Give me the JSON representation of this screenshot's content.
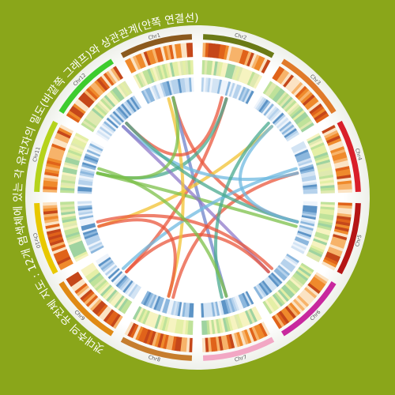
{
  "caption": "갯대추의 유전체 지도 : 12개 염색체에 있는 각 유전자의 밀도(바깥쪽 그래프)와 상관관계(안쪽 연결선)를 확인할 수 있다",
  "colors": {
    "background": "#8aa61a",
    "disc": "#ffffff",
    "caption": "#ffffff"
  },
  "chromosomes": [
    {
      "label": "Chr1",
      "color": "#8b5a1e"
    },
    {
      "label": "Chr2",
      "color": "#6b7a16"
    },
    {
      "label": "Chr3",
      "color": "#e07a2a"
    },
    {
      "label": "Chr4",
      "color": "#d91f2a"
    },
    {
      "label": "Chr5",
      "color": "#b51515"
    },
    {
      "label": "Chr6",
      "color": "#c8289e"
    },
    {
      "label": "Chr7",
      "color": "#f2a7c4"
    },
    {
      "label": "Chr8",
      "color": "#c67d2e"
    },
    {
      "label": "Chr9",
      "color": "#e08a14"
    },
    {
      "label": "Chr10",
      "color": "#e8c800"
    },
    {
      "label": "Chr11",
      "color": "#b5d31c"
    },
    {
      "label": "Chr12",
      "color": "#3dcc2e"
    }
  ],
  "links": [
    {
      "from": 1,
      "to": 5,
      "color": "#e9573c"
    },
    {
      "from": 1,
      "to": 7,
      "color": "#6f83c9"
    },
    {
      "from": 2,
      "to": 9,
      "color": "#e9573c"
    },
    {
      "from": 2,
      "to": 11,
      "color": "#4aaa8f"
    },
    {
      "from": 3,
      "to": 10,
      "color": "#f1c232"
    },
    {
      "from": 4,
      "to": 8,
      "color": "#e9573c"
    },
    {
      "from": 4,
      "to": 12,
      "color": "#6fb9e0"
    },
    {
      "from": 5,
      "to": 11,
      "color": "#7cc04a"
    },
    {
      "from": 6,
      "to": 12,
      "color": "#8f7ac9"
    },
    {
      "from": 6,
      "to": 9,
      "color": "#e9573c"
    },
    {
      "from": 7,
      "to": 3,
      "color": "#4aaa8f"
    },
    {
      "from": 8,
      "to": 1,
      "color": "#f1c232"
    },
    {
      "from": 9,
      "to": 4,
      "color": "#6fb9e0"
    },
    {
      "from": 10,
      "to": 6,
      "color": "#e9573c"
    },
    {
      "from": 11,
      "to": 7,
      "color": "#7cc04a"
    },
    {
      "from": 12,
      "to": 2,
      "color": "#e9573c"
    },
    {
      "from": 12,
      "to": 5,
      "color": "#4aaa8f"
    },
    {
      "from": 3,
      "to": 5,
      "color": "#6fb9e0"
    },
    {
      "from": 8,
      "to": 10,
      "color": "#e9573c"
    },
    {
      "from": 1,
      "to": 11,
      "color": "#7cc04a"
    }
  ]
}
